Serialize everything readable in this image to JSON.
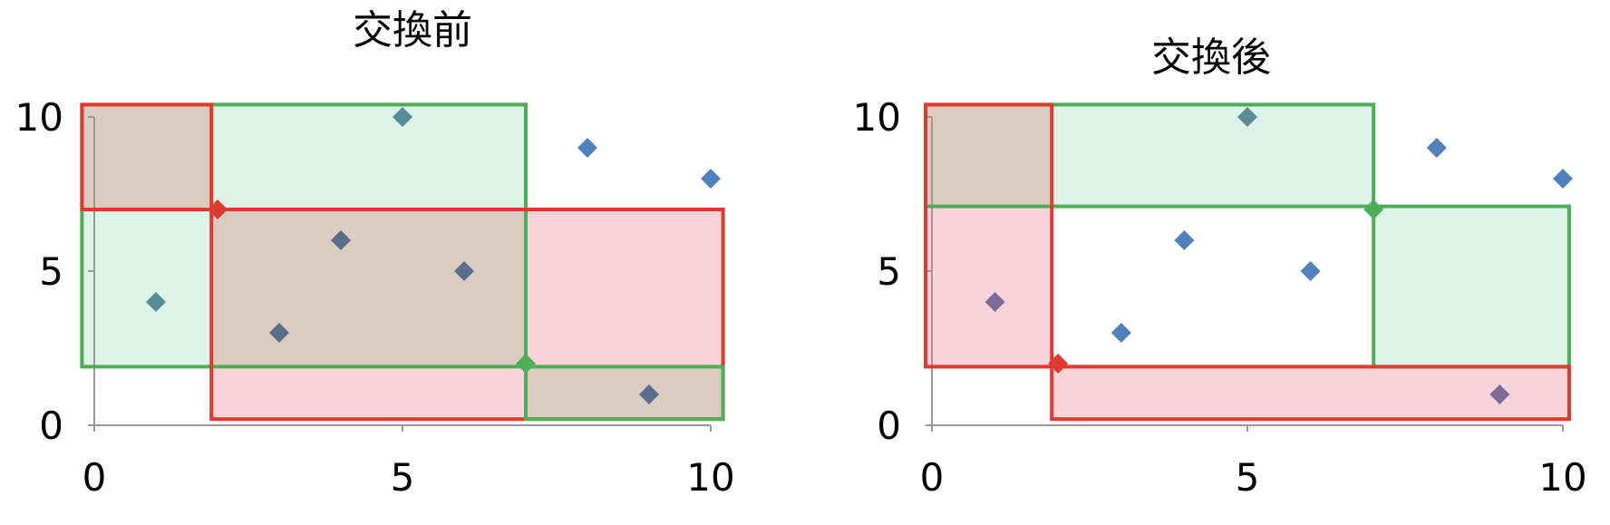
{
  "chart_data": [
    {
      "type": "scatter",
      "title": "交換前",
      "xlim": [
        0,
        10
      ],
      "ylim": [
        0,
        10
      ],
      "x_ticks": [
        "0",
        "5",
        "10"
      ],
      "y_ticks": [
        "0",
        "5",
        "10"
      ],
      "grid": false,
      "points": [
        {
          "x": 1,
          "y": 4
        },
        {
          "x": 2,
          "y": 7
        },
        {
          "x": 3,
          "y": 3
        },
        {
          "x": 4,
          "y": 6
        },
        {
          "x": 5,
          "y": 10
        },
        {
          "x": 6,
          "y": 5
        },
        {
          "x": 7,
          "y": 2
        },
        {
          "x": 8,
          "y": 9
        },
        {
          "x": 9,
          "y": 1
        },
        {
          "x": 10,
          "y": 8
        }
      ],
      "highlighted_points": [
        {
          "x": 2,
          "y": 7,
          "color": "red"
        },
        {
          "x": 7,
          "y": 2,
          "color": "green"
        }
      ],
      "rectangles": [
        {
          "color": "green",
          "x": [
            -0.2,
            7.0
          ],
          "y": [
            1.9,
            10.4
          ]
        },
        {
          "color": "red",
          "x": [
            -0.2,
            1.9
          ],
          "y": [
            7.0,
            10.4
          ]
        },
        {
          "color": "red",
          "x": [
            1.9,
            10.2
          ],
          "y": [
            0.2,
            7.0
          ]
        },
        {
          "color": "green",
          "x": [
            7.0,
            10.2
          ],
          "y": [
            0.2,
            1.9
          ]
        }
      ]
    },
    {
      "type": "scatter",
      "title": "交換後",
      "xlim": [
        0,
        10
      ],
      "ylim": [
        0,
        10
      ],
      "x_ticks": [
        "0",
        "5",
        "10"
      ],
      "y_ticks": [
        "0",
        "5",
        "10"
      ],
      "grid": false,
      "points": [
        {
          "x": 1,
          "y": 4
        },
        {
          "x": 2,
          "y": 2
        },
        {
          "x": 3,
          "y": 3
        },
        {
          "x": 4,
          "y": 6
        },
        {
          "x": 5,
          "y": 10
        },
        {
          "x": 6,
          "y": 5
        },
        {
          "x": 7,
          "y": 7
        },
        {
          "x": 8,
          "y": 9
        },
        {
          "x": 9,
          "y": 1
        },
        {
          "x": 10,
          "y": 8
        }
      ],
      "highlighted_points": [
        {
          "x": 2,
          "y": 2,
          "color": "red"
        },
        {
          "x": 7,
          "y": 7,
          "color": "green"
        }
      ],
      "rectangles": [
        {
          "color": "green",
          "x": [
            -0.1,
            7.0
          ],
          "y": [
            7.1,
            10.4
          ]
        },
        {
          "color": "green",
          "x": [
            7.0,
            10.1
          ],
          "y": [
            1.9,
            7.1
          ]
        },
        {
          "color": "red",
          "x": [
            -0.1,
            1.9
          ],
          "y": [
            1.9,
            10.4
          ]
        },
        {
          "color": "red",
          "x": [
            1.9,
            10.1
          ],
          "y": [
            0.2,
            1.9
          ]
        }
      ]
    }
  ],
  "colors": {
    "marker": "#4F81BD",
    "marker_dark": "#5A6E8C",
    "marker_purple": "#7C6B9A",
    "marker_green_blend": "#558E9A",
    "red_stroke": "#E03A2E",
    "red_fill": "#F4B8BE",
    "green_stroke": "#4EAE57",
    "green_fill": "#C8EBD9",
    "overlap_fill": "#DBCCC2",
    "axis": "#999999"
  }
}
